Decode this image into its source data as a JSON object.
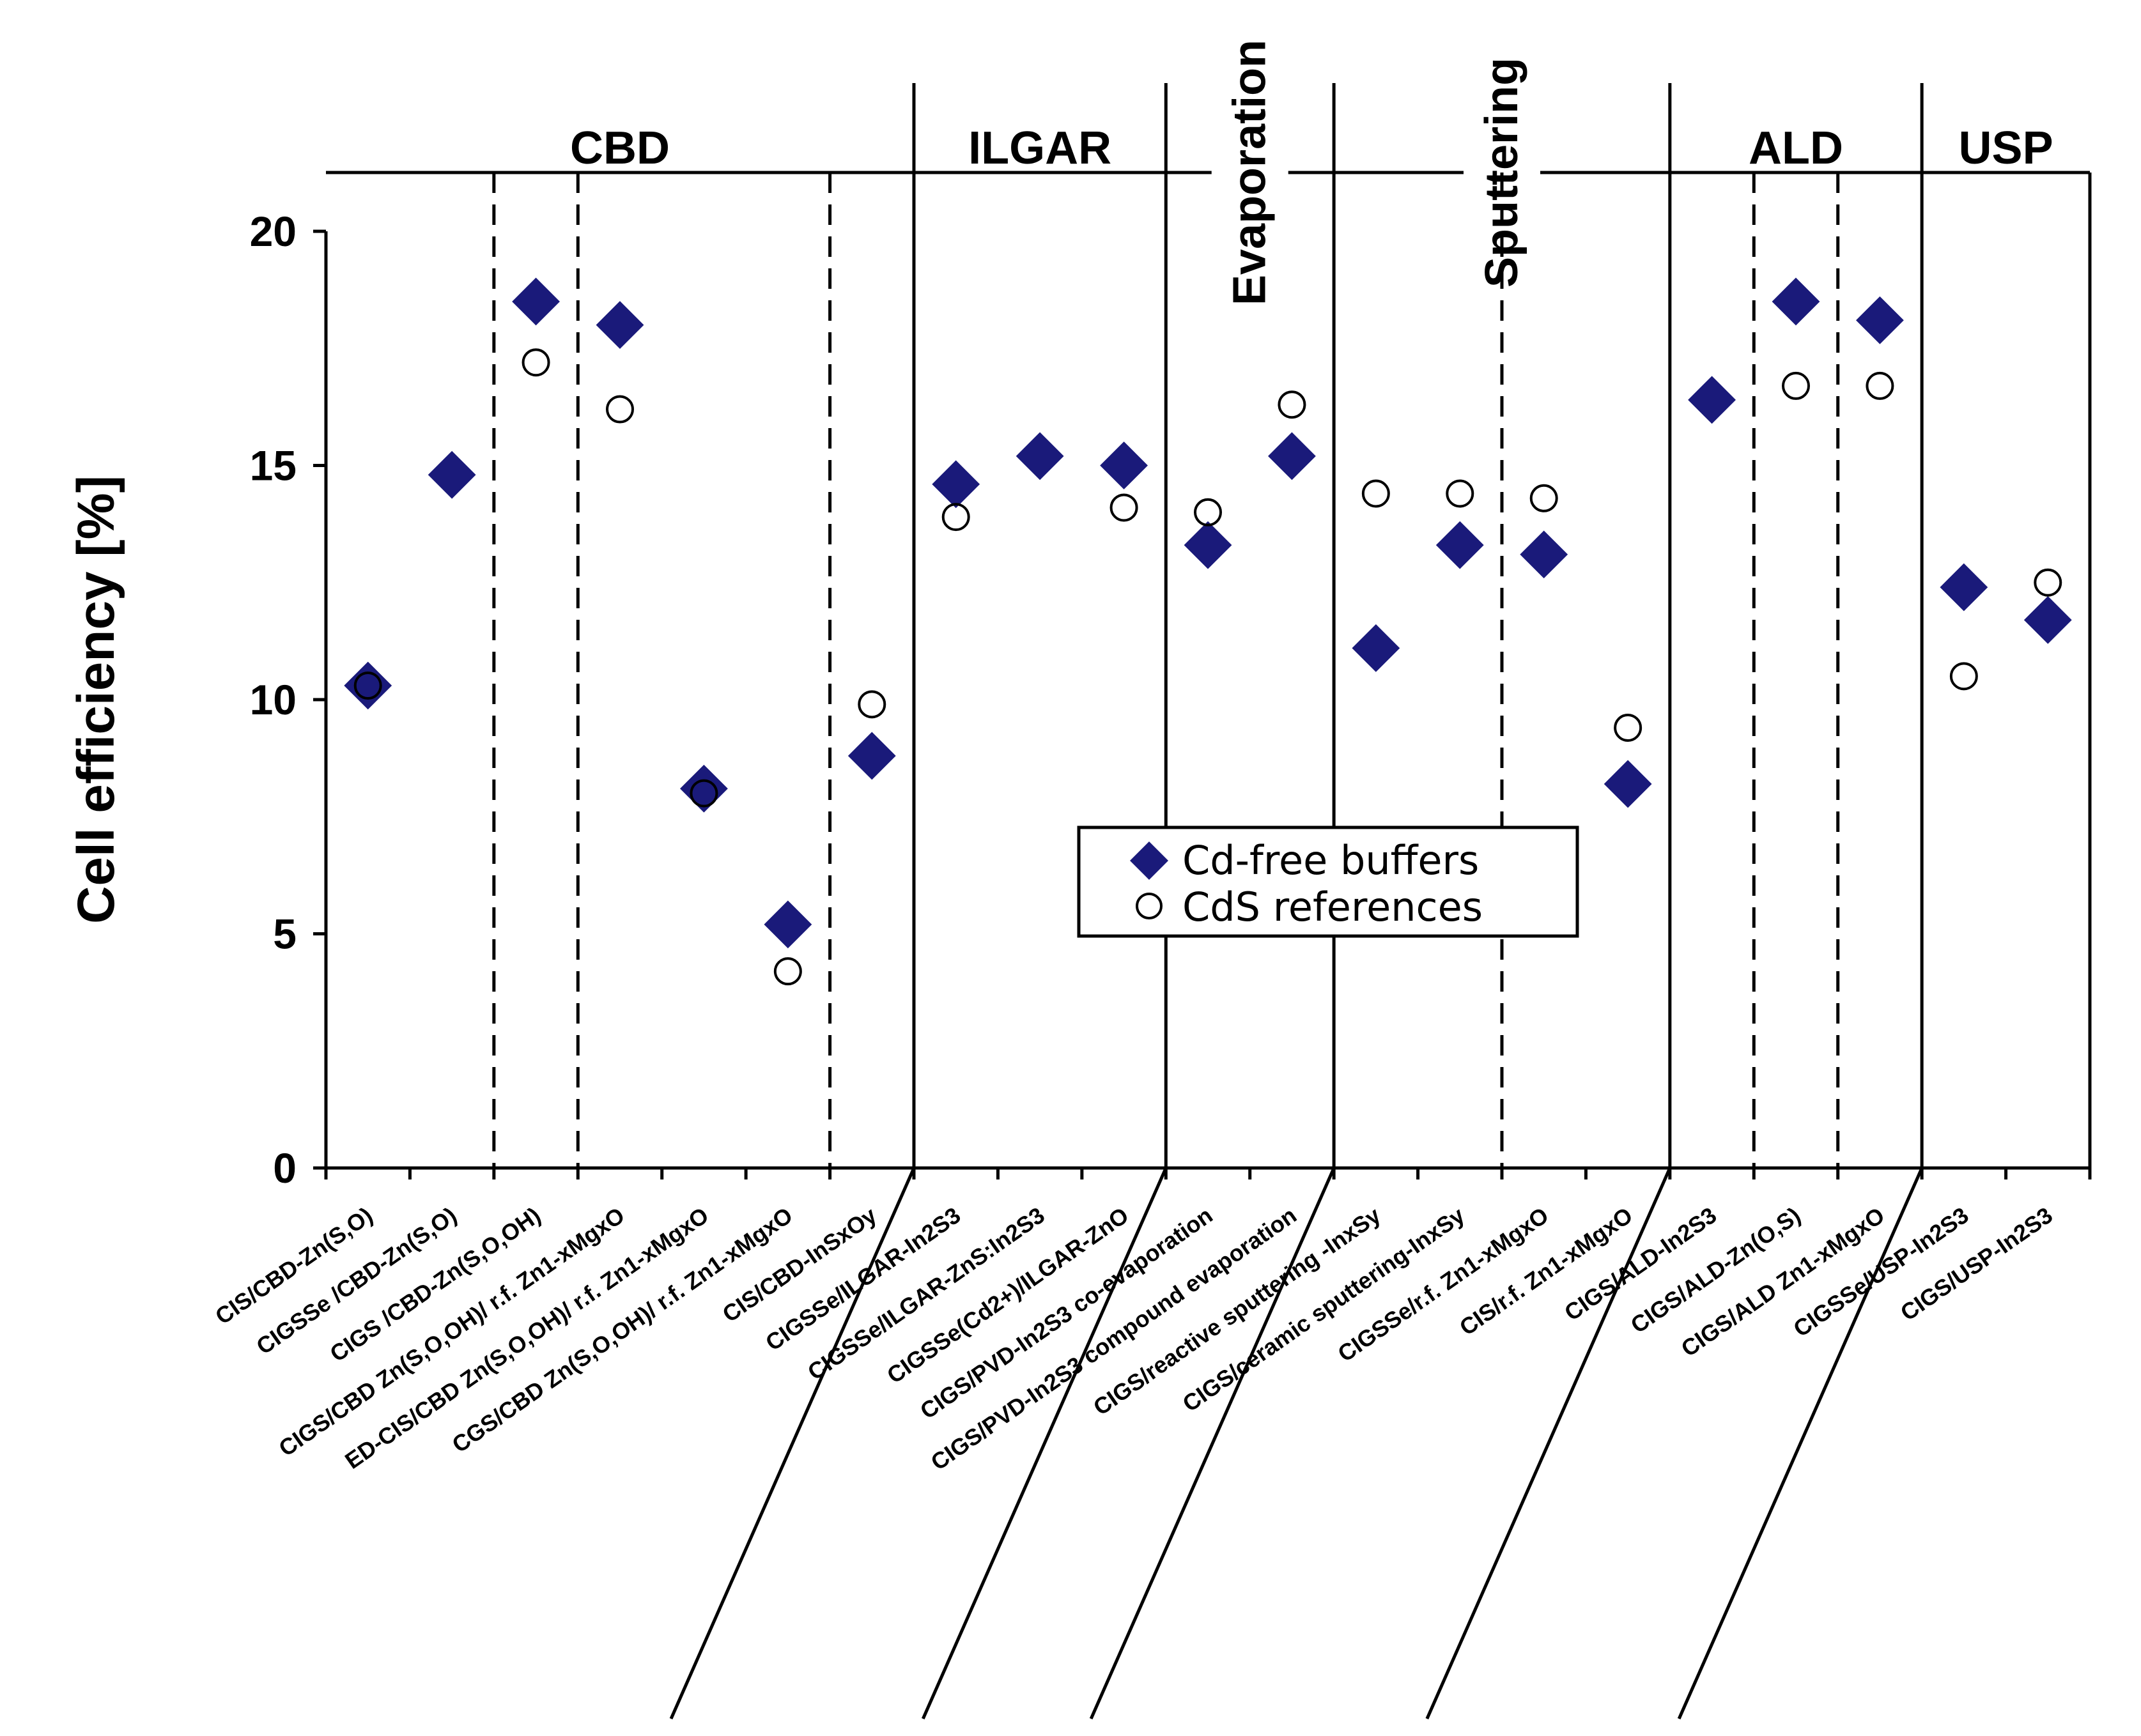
{
  "chart_data": {
    "type": "scatter",
    "title": "",
    "xlabel": "",
    "ylabel": "Cell efficiency [%]",
    "ylim": [
      0,
      20
    ],
    "yticks": [
      0,
      5,
      10,
      15,
      20
    ],
    "categories": [
      "CIS/CBD-Zn(S,O)",
      "CIGSSe /CBD-Zn(S,O)",
      "CIGS /CBD-Zn(S,O,OH)",
      "CIGS/CBD Zn(S,O,OH)/ r.f. Zn1-xMgxO",
      "ED-CIS/CBD Zn(S,O,OH)/ r.f. Zn1-xMgxO",
      "CGS/CBD Zn(S,O,OH)/ r.f. Zn1-xMgxO",
      "CIS/CBD-InSxOy",
      "CIGSSe/ILGAR-In2S3",
      "CIGSSe/ILGAR-ZnS:In2S3",
      "CIGSSe(Cd2+)/ILGAR-ZnO",
      "CIGS/PVD-In2S3 co-evaporation",
      "CIGS/PVD-In2S3 compound evaporation",
      "CIGS/reactive sputtering -InxSy",
      "CIGS/ceramic sputtering-InxSy",
      "CIGSSe/r.f. Zn1-xMgxO",
      "CIS/r.f. Zn1-xMgxO",
      "CIGS/ALD-In2S3",
      "CIGS/ALD-Zn(O,S)",
      "CIGS/ALD Zn1-xMgxO",
      "CIGSSe/USP-In2S3",
      "CIGS/USP-In2S3"
    ],
    "series": [
      {
        "name": "Cd-free buffers",
        "marker": "filled-diamond",
        "color": "#1a1a7a",
        "points": [
          {
            "x": 1,
            "y": 10.3
          },
          {
            "x": 2,
            "y": 14.8
          },
          {
            "x": 3,
            "y": 18.5
          },
          {
            "x": 4,
            "y": 18.0
          },
          {
            "x": 5,
            "y": 8.1
          },
          {
            "x": 6,
            "y": 5.2
          },
          {
            "x": 7,
            "y": 8.8
          },
          {
            "x": 8,
            "y": 14.6
          },
          {
            "x": 9,
            "y": 15.2
          },
          {
            "x": 10,
            "y": 15.0
          },
          {
            "x": 11,
            "y": 13.3
          },
          {
            "x": 12,
            "y": 15.2
          },
          {
            "x": 13,
            "y": 11.1
          },
          {
            "x": 14,
            "y": 13.3
          },
          {
            "x": 15,
            "y": 13.1
          },
          {
            "x": 16,
            "y": 8.2
          },
          {
            "x": 17,
            "y": 16.4
          },
          {
            "x": 18,
            "y": 18.5
          },
          {
            "x": 19,
            "y": 18.1
          },
          {
            "x": 20,
            "y": 12.4
          },
          {
            "x": 21,
            "y": 11.7
          }
        ]
      },
      {
        "name": "CdS references",
        "marker": "open-circle",
        "color": "#000000",
        "points": [
          {
            "x": 1,
            "y": 10.3
          },
          {
            "x": 3,
            "y": 17.2
          },
          {
            "x": 4,
            "y": 16.2
          },
          {
            "x": 5,
            "y": 8.0
          },
          {
            "x": 6,
            "y": 4.2
          },
          {
            "x": 7,
            "y": 9.9
          },
          {
            "x": 8,
            "y": 13.9
          },
          {
            "x": 10,
            "y": 14.1
          },
          {
            "x": 11,
            "y": 14.0
          },
          {
            "x": 12,
            "y": 16.3
          },
          {
            "x": 13,
            "y": 14.4
          },
          {
            "x": 14,
            "y": 14.4
          },
          {
            "x": 15,
            "y": 14.3
          },
          {
            "x": 16,
            "y": 9.4
          },
          {
            "x": 18,
            "y": 16.7
          },
          {
            "x": 19,
            "y": 16.7
          },
          {
            "x": 20,
            "y": 10.5
          },
          {
            "x": 21,
            "y": 12.5
          }
        ]
      }
    ],
    "groups": [
      {
        "label": "CBD",
        "from": 1,
        "to": 7,
        "vertical": false
      },
      {
        "label": "ILGAR",
        "from": 8,
        "to": 10,
        "vertical": false
      },
      {
        "label": "Evaporation",
        "from": 11,
        "to": 12,
        "vertical": true
      },
      {
        "label": "Sputtering",
        "from": 13,
        "to": 16,
        "vertical": true
      },
      {
        "label": "ALD",
        "from": 17,
        "to": 19,
        "vertical": false
      },
      {
        "label": "USP",
        "from": 20,
        "to": 21,
        "vertical": false
      }
    ],
    "subgroup_dividers_after": [
      2,
      3,
      6,
      14,
      17,
      18
    ],
    "legend": {
      "position": "center-right",
      "entries": [
        "Cd-free buffers",
        "CdS references"
      ]
    }
  }
}
